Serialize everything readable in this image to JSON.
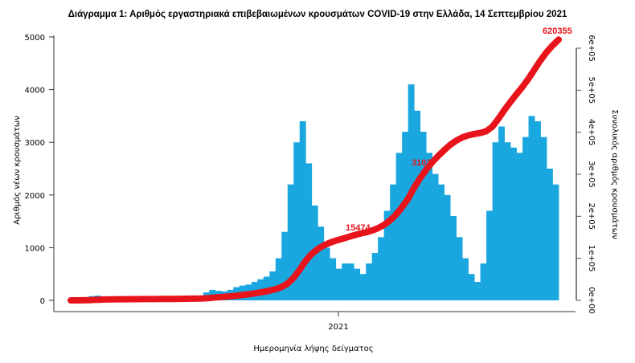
{
  "chart_data": {
    "type": "bar",
    "title": "Διάγραμμα 1: Αριθμός εργαστηριακά επιβεβαιωμένων κρουσμάτων COVID-19 στην Ελλάδα, 14 Σεπτεμβρίου 2021",
    "xlabel": "Ημερομηνία λήψης δείγματος",
    "ylabel": "Αριθμός νέων κρουσμάτων",
    "y2label": "Συνολικός αριθμός κρουσμάτων",
    "x_ticks": [
      "2021"
    ],
    "y_ticks": [
      "0",
      "1000",
      "2000",
      "3000",
      "4000",
      "5000"
    ],
    "y2_ticks": [
      "0e+00",
      "1e+05",
      "2e+05",
      "3e+05",
      "4e+05",
      "5e+05",
      "6e+05"
    ],
    "ylim": [
      0,
      5000
    ],
    "y2lim": [
      0,
      600000
    ],
    "bar_color": "#1aa7e0",
    "line_color": "#e8141c",
    "x_start": "2020-02-26",
    "x_end": "2021-09-14",
    "bar_interval_days": 7,
    "series": [
      {
        "type": "bar",
        "values": [
          5,
          30,
          60,
          80,
          90,
          70,
          50,
          25,
          15,
          15,
          20,
          15,
          10,
          12,
          15,
          20,
          25,
          25,
          30,
          35,
          40,
          45,
          150,
          200,
          180,
          170,
          200,
          250,
          280,
          300,
          350,
          400,
          450,
          550,
          800,
          1300,
          2200,
          3000,
          3400,
          2600,
          1800,
          1400,
          1000,
          800,
          600,
          700,
          700,
          600,
          500,
          700,
          900,
          1200,
          1700,
          2200,
          2800,
          3200,
          4100,
          3600,
          3200,
          2800,
          2400,
          2200,
          2000,
          1600,
          1200,
          800,
          500,
          350,
          700,
          1700,
          3000,
          3300,
          3000,
          2900,
          2800,
          3100,
          3500,
          3400,
          3100,
          2500,
          2200
        ]
      },
      {
        "type": "line",
        "label_points": [
          "15474",
          "3102",
          "620355"
        ],
        "final_value": 620355
      }
    ]
  }
}
